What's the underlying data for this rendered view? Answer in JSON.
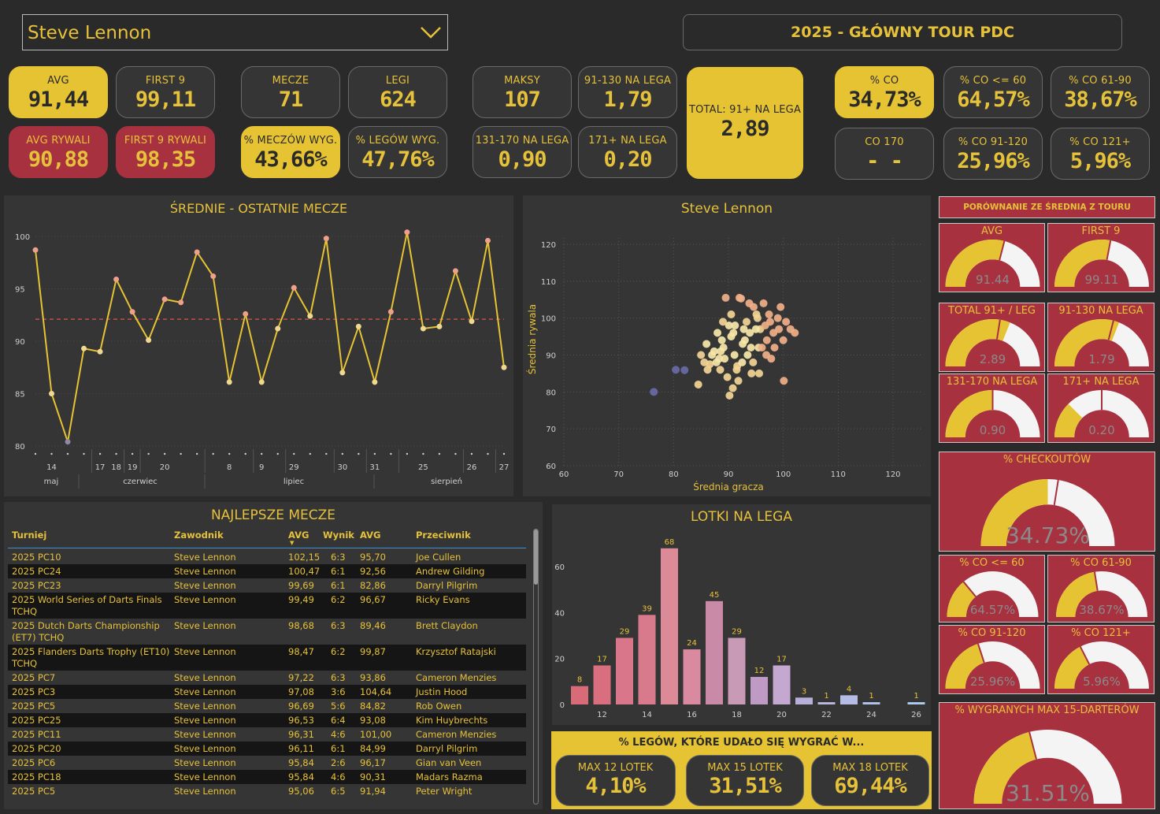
{
  "player_select": {
    "value": "Steve Lennon"
  },
  "header": {
    "title": "2025 - GŁÓWNY TOUR PDC"
  },
  "stats": {
    "avg": {
      "label": "AVG",
      "value": "91,44"
    },
    "first9": {
      "label": "FIRST 9",
      "value": "99,11"
    },
    "avg_opp": {
      "label": "AVG RYWALI",
      "value": "90,88"
    },
    "first9_opp": {
      "label": "FIRST 9 RYWALI",
      "value": "98,35"
    },
    "matches": {
      "label": "MECZE",
      "value": "71"
    },
    "legs": {
      "label": "LEGI",
      "value": "624"
    },
    "pct_matches_won": {
      "label": "% MECZÓW WYG.",
      "value": "43,66%"
    },
    "pct_legs_won": {
      "label": "% LEGÓW WYG.",
      "value": "47,76%"
    },
    "maxes": {
      "label": "MAKSY",
      "value": "107"
    },
    "r91_130": {
      "label": "91-130 NA LEGA",
      "value": "1,79"
    },
    "r131_170": {
      "label": "131-170 NA LEGA",
      "value": "0,90"
    },
    "r171": {
      "label": "171+ NA LEGA",
      "value": "0,20"
    },
    "total91": {
      "label": "TOTAL: 91+ NA LEGA",
      "value": "2,89"
    },
    "pct_co": {
      "label": "% CO",
      "value": "34,73%"
    },
    "co_le60": {
      "label": "% CO <= 60",
      "value": "64,57%"
    },
    "co_61_90": {
      "label": "% CO 61-90",
      "value": "38,67%"
    },
    "co170": {
      "label": "CO 170",
      "value": "- -"
    },
    "co_91_120": {
      "label": "% CO 91-120",
      "value": "25,96%"
    },
    "co_121": {
      "label": "% CO 121+",
      "value": "5,96%"
    }
  },
  "line_chart": {
    "title": "ŚREDNIE - OSTATNIE MECZE",
    "y_ticks": [
      "100",
      "95",
      "90",
      "85",
      "80"
    ],
    "day_labels": [
      "14",
      "17",
      "18",
      "19",
      "20",
      "8",
      "9",
      "29",
      "30",
      "31",
      "25",
      "26",
      "27"
    ],
    "month_labels": [
      "maj",
      "czerwiec",
      "lipiec",
      "sierpień"
    ]
  },
  "chart_data": [
    {
      "type": "line",
      "title": "ŚREDNIE - OSTATNIE MECZE",
      "ylim": [
        80,
        100
      ],
      "reference_line": 92.1,
      "values": [
        98.7,
        85.0,
        80.4,
        89.3,
        89.0,
        95.9,
        92.8,
        90.1,
        94.0,
        93.7,
        98.5,
        96.2,
        86.1,
        92.6,
        86.1,
        91.2,
        95.1,
        92.4,
        99.8,
        87.0,
        91.4,
        86.1,
        92.8,
        100.4,
        91.2,
        91.4,
        96.7,
        91.9,
        99.6,
        87.5
      ]
    },
    {
      "type": "scatter",
      "title": "Steve Lennon",
      "xlabel": "Średnia gracza",
      "ylabel": "Średnia rywala",
      "xlim": [
        60,
        120
      ],
      "ylim": [
        60,
        120
      ],
      "x_ticks": [
        "60",
        "70",
        "80",
        "90",
        "100",
        "110",
        "120"
      ],
      "y_ticks": [
        "120",
        "110",
        "100",
        "90",
        "80",
        "70",
        "60"
      ],
      "points": [
        [
          76.4,
          80
        ],
        [
          80.4,
          86
        ],
        [
          82.0,
          85.9
        ],
        [
          85.6,
          88
        ],
        [
          86.6,
          87.5
        ],
        [
          87.4,
          91
        ],
        [
          88.3,
          89
        ],
        [
          88.8,
          94
        ],
        [
          89.1,
          92
        ],
        [
          89.5,
          105.5
        ],
        [
          90.1,
          98
        ],
        [
          90.5,
          95
        ],
        [
          90.9,
          96
        ],
        [
          91.1,
          90
        ],
        [
          91.6,
          87
        ],
        [
          92.0,
          105.5
        ],
        [
          92.3,
          105.3
        ],
        [
          92.6,
          93
        ],
        [
          93.3,
          99
        ],
        [
          93.5,
          90
        ],
        [
          93.9,
          96
        ],
        [
          94.2,
          85
        ],
        [
          94.6,
          103
        ],
        [
          95.1,
          101
        ],
        [
          95.5,
          92
        ],
        [
          95.8,
          97
        ],
        [
          96.4,
          104
        ],
        [
          96.7,
          98
        ],
        [
          97.0,
          94
        ],
        [
          97.4,
          101
        ],
        [
          97.8,
          89
        ],
        [
          98.2,
          96
        ],
        [
          99.0,
          100
        ],
        [
          99.5,
          103
        ],
        [
          100.0,
          94
        ],
        [
          100.5,
          99
        ],
        [
          101.3,
          97
        ],
        [
          102.1,
          96
        ],
        [
          86.0,
          93
        ],
        [
          87.0,
          90
        ],
        [
          88.0,
          96
        ],
        [
          88.5,
          86
        ],
        [
          89.0,
          99
        ],
        [
          89.8,
          84
        ],
        [
          90.5,
          101
        ],
        [
          91.2,
          98
        ],
        [
          91.8,
          83
        ],
        [
          92.5,
          88
        ],
        [
          93.0,
          94
        ],
        [
          93.8,
          104
        ],
        [
          94.5,
          88
        ],
        [
          95.0,
          97
        ],
        [
          95.6,
          85
        ],
        [
          96.1,
          92
        ],
        [
          96.9,
          90
        ],
        [
          97.6,
          99
        ],
        [
          98.4,
          92
        ],
        [
          99.2,
          97
        ],
        [
          100.1,
          83
        ],
        [
          90.2,
          79
        ],
        [
          90.8,
          81
        ],
        [
          91.5,
          86
        ],
        [
          92.8,
          97
        ],
        [
          94.1,
          92
        ],
        [
          95.3,
          100
        ],
        [
          89.3,
          89
        ],
        [
          88.6,
          91
        ],
        [
          87.8,
          88
        ],
        [
          86.2,
          86
        ],
        [
          85.0,
          90
        ],
        [
          84.5,
          82
        ]
      ]
    },
    {
      "type": "bar",
      "title": "LOTKI NA LEGA",
      "categories": [
        "9",
        "10",
        "11",
        "12",
        "13",
        "14",
        "15",
        "16",
        "17",
        "18",
        "19",
        "20",
        "21",
        "22",
        "23",
        "24",
        "25",
        "26"
      ],
      "values": [
        0,
        0,
        8,
        17,
        29,
        39,
        68,
        24,
        45,
        29,
        12,
        17,
        3,
        1,
        4,
        1,
        0,
        1
      ],
      "value_labels": [
        "",
        "",
        "8",
        "17",
        "29",
        "39",
        "68",
        "24",
        "45",
        "29",
        "12",
        "17",
        "3",
        "1",
        "4",
        "1",
        "",
        "1"
      ],
      "x_ticks": [
        "12",
        "14",
        "16",
        "18",
        "20",
        "22",
        "24",
        "26"
      ],
      "y_ticks": [
        "60",
        "40",
        "20",
        "0"
      ],
      "ylim": [
        0,
        70
      ]
    }
  ],
  "scatter": {
    "title": "Steve Lennon",
    "xlabel": "Średnia gracza",
    "ylabel": "Średnia rywala"
  },
  "bar_chart": {
    "title": "LOTKI NA LEGA"
  },
  "table": {
    "title": "NAJLEPSZE MECZE",
    "headers": {
      "tournament": "Turniej",
      "player": "Zawodnik",
      "avg": "AVG",
      "result": "Wynik",
      "opp_avg": "AVG",
      "opponent": "Przeciwnik"
    },
    "rows": [
      {
        "t1": "2025 PC10",
        "t2": "",
        "p": "Steve Lennon",
        "a": "102,15",
        "w": "6:3",
        "o": "95,70",
        "op": "Joe Cullen"
      },
      {
        "t1": "2025 PC24",
        "t2": "",
        "p": "Steve Lennon",
        "a": "100,47",
        "w": "6:1",
        "o": "92,56",
        "op": "Andrew Gilding"
      },
      {
        "t1": "2025 PC23",
        "t2": "",
        "p": "Steve Lennon",
        "a": "99,69",
        "w": "6:1",
        "o": "82,86",
        "op": "Darryl Pilgrim"
      },
      {
        "t1": "2025 World Series of Darts Finals",
        "t2": "TCHQ",
        "p": "Steve Lennon",
        "a": "99,49",
        "w": "6:2",
        "o": "96,67",
        "op": "Ricky Evans"
      },
      {
        "t1": "2025 Dutch Darts Championship",
        "t2": "(ET7) TCHQ",
        "p": "Steve Lennon",
        "a": "98,68",
        "w": "6:3",
        "o": "89,46",
        "op": "Brett Claydon"
      },
      {
        "t1": "2025 Flanders Darts Trophy (ET10)",
        "t2": "TCHQ",
        "p": "Steve Lennon",
        "a": "98,47",
        "w": "6:2",
        "o": "99,87",
        "op": "Krzysztof Ratajski"
      },
      {
        "t1": "2025 PC7",
        "t2": "",
        "p": "Steve Lennon",
        "a": "97,22",
        "w": "6:3",
        "o": "93,86",
        "op": "Cameron Menzies"
      },
      {
        "t1": "2025 PC3",
        "t2": "",
        "p": "Steve Lennon",
        "a": "97,08",
        "w": "3:6",
        "o": "104,64",
        "op": "Justin Hood"
      },
      {
        "t1": "2025 PC5",
        "t2": "",
        "p": "Steve Lennon",
        "a": "96,69",
        "w": "5:6",
        "o": "84,82",
        "op": "Rob Owen"
      },
      {
        "t1": "2025 PC25",
        "t2": "",
        "p": "Steve Lennon",
        "a": "96,53",
        "w": "6:4",
        "o": "93,08",
        "op": "Kim Huybrechts"
      },
      {
        "t1": "2025 PC11",
        "t2": "",
        "p": "Steve Lennon",
        "a": "96,31",
        "w": "4:6",
        "o": "101,00",
        "op": "Cameron Menzies"
      },
      {
        "t1": "2025 PC20",
        "t2": "",
        "p": "Steve Lennon",
        "a": "96,11",
        "w": "6:1",
        "o": "84,99",
        "op": "Darryl Pilgrim"
      },
      {
        "t1": "2025 PC6",
        "t2": "",
        "p": "Steve Lennon",
        "a": "95,84",
        "w": "2:6",
        "o": "96,17",
        "op": "Gian van Veen"
      },
      {
        "t1": "2025 PC18",
        "t2": "",
        "p": "Steve Lennon",
        "a": "95,84",
        "w": "4:6",
        "o": "90,31",
        "op": "Madars Razma"
      },
      {
        "t1": "2025 PC5",
        "t2": "",
        "p": "Steve Lennon",
        "a": "95,06",
        "w": "6:5",
        "o": "91,94",
        "op": "Peter Wright"
      }
    ]
  },
  "comparison": {
    "title": "PORÓWNANIE ZE ŚREDNIĄ Z TOURU",
    "gauges": [
      {
        "label": "AVG",
        "value": "91.44",
        "fill": 0.58,
        "target": 0.58
      },
      {
        "label": "FIRST 9",
        "value": "99.11",
        "fill": 0.56,
        "target": 0.56
      },
      {
        "label": "TOTAL 91+ / LEG",
        "value": "2.89",
        "fill": 0.62,
        "target": 0.55
      },
      {
        "label": "91-130 NA LEGA",
        "value": "1.79",
        "fill": 0.62,
        "target": 0.58
      },
      {
        "label": "131-170 NA LEGA",
        "value": "0.90",
        "fill": 0.5,
        "target": 0.5
      },
      {
        "label": "171+ NA LEGA",
        "value": "0.20",
        "fill": 0.25,
        "target": 0.5
      },
      {
        "label": "% CHECKOUTÓW",
        "value": "34.73%",
        "fill": 0.5,
        "target": 0.55
      },
      {
        "label": "% CO <= 60",
        "value": "64.57%",
        "fill": 0.28,
        "target": 0.28
      },
      {
        "label": "% CO 61-90",
        "value": "38.67%",
        "fill": 0.45,
        "target": 0.45
      },
      {
        "label": "% CO 91-120",
        "value": "25.96%",
        "fill": 0.4,
        "target": 0.4
      },
      {
        "label": "% CO 121+",
        "value": "5.96%",
        "fill": 0.35,
        "target": 0.35
      },
      {
        "label": "% WYGRANYCH MAX 15-DARTERÓW",
        "value": "31.51%",
        "fill": 0.42,
        "target": 0.42
      }
    ]
  },
  "legs_won": {
    "title": "% LEGÓW, KTÓRE UDAŁO SIĘ WYGRAĆ W...",
    "items": [
      {
        "label": "MAX 12 LOTEK",
        "value": "4,10%"
      },
      {
        "label": "MAX 15 LOTEK",
        "value": "31,51%"
      },
      {
        "label": "MAX 18 LOTEK",
        "value": "69,44%"
      }
    ]
  },
  "colors": {
    "accent": "#e6c333",
    "red": "#a8313f",
    "panel": "#353535",
    "bg": "#2a2a2a"
  }
}
